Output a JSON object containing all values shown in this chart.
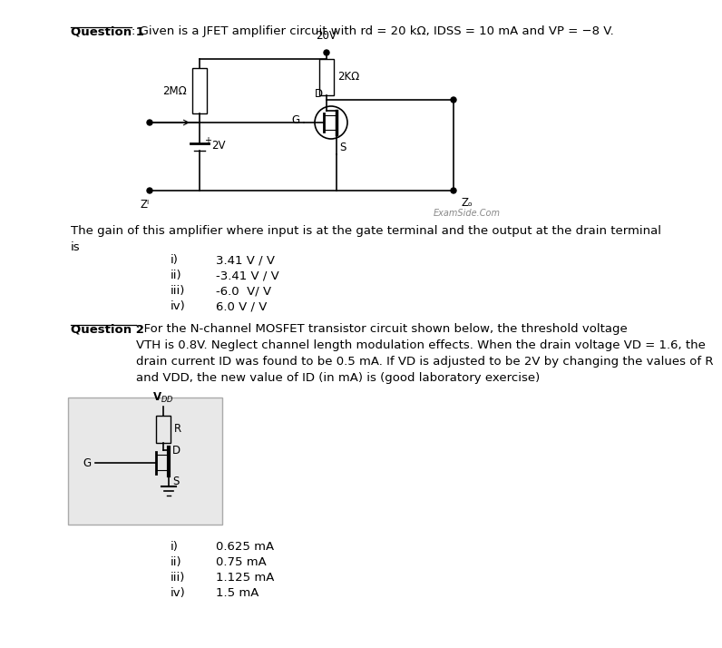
{
  "bg_color": "#ffffff",
  "q1_label": "Question 1",
  "q1_text": ": Given is a JFET amplifier circuit with rd = 20 kΩ, IDSS = 10 mA and VP = −8 V.",
  "q1_answer_text": "The gain of this amplifier where input is at the gate terminal and the output at the drain terminal\nis",
  "q1_options": [
    [
      "i)",
      "3.41 V / V"
    ],
    [
      "ii)",
      "-3.41 V / V"
    ],
    [
      "iii)",
      "-6.0  V/ V"
    ],
    [
      "iv)",
      "6.0 V / V"
    ]
  ],
  "q2_label": "Question 2",
  "q2_text": ": For the N-channel MOSFET transistor circuit shown below, the threshold voltage\nVTH is 0.8V. Neglect channel length modulation effects. When the drain voltage VD = 1.6, the\ndrain current ID was found to be 0.5 mA. If VD is adjusted to be 2V by changing the values of R\nand VDD, the new value of ID (in mA) is (good laboratory exercise)",
  "q2_options": [
    [
      "i)",
      "0.625 mA"
    ],
    [
      "ii)",
      "0.75 mA"
    ],
    [
      "iii)",
      "1.125 mA"
    ],
    [
      "iv)",
      "1.5 mA"
    ]
  ],
  "examside_text": "ExamSide.Com",
  "font_size_main": 9.5,
  "font_size_small": 8.5
}
